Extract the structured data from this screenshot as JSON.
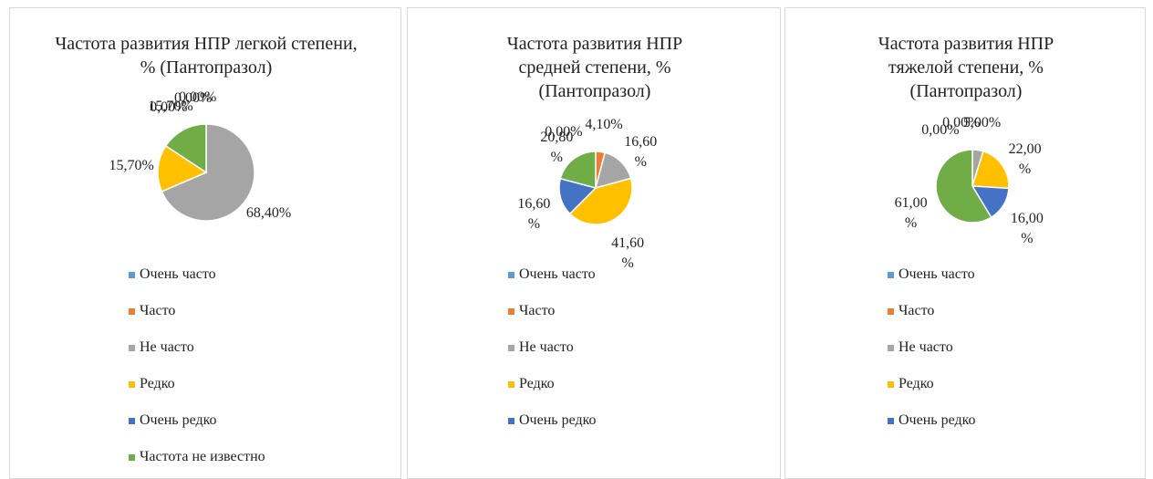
{
  "chart_data": [
    {
      "type": "pie",
      "title": "Частота развития НПР легкой степени, % (Пантопразол)",
      "categories": [
        "Очень часто",
        "Часто",
        "Не часто",
        "Редко",
        "Очень редко",
        "Частота не известно"
      ],
      "values": [
        0,
        0,
        68.4,
        15.7,
        0,
        15.7
      ],
      "value_labels": [
        "0,00%",
        "0,00%",
        "68,40%",
        "15,70%",
        "0,00%",
        "15,70%"
      ],
      "colors": [
        "#5b9bd5",
        "#ed7d31",
        "#a5a5a5",
        "#ffc000",
        "#4472c4",
        "#70ad47"
      ],
      "legend": "bottom"
    },
    {
      "type": "pie",
      "title": "Частота развития НПР средней степени, % (Пантопразол)",
      "categories": [
        "Очень часто",
        "Часто",
        "Не часто",
        "Редко",
        "Очень редко",
        null
      ],
      "values": [
        0,
        4.1,
        16.6,
        41.6,
        16.6,
        20.8
      ],
      "value_labels": [
        "0,00%",
        "4,10%",
        "16,60 %",
        "41,60 %",
        "16,60 %",
        "20,80 %"
      ],
      "colors": [
        "#5b9bd5",
        "#ed7d31",
        "#a5a5a5",
        "#ffc000",
        "#4472c4",
        "#70ad47"
      ],
      "legend": "bottom"
    },
    {
      "type": "pie",
      "title": "Частота развития НПР тяжелой степени, % (Пантопразол)",
      "categories": [
        "Очень часто",
        "Часто",
        "Не часто",
        "Редко",
        "Очень редко",
        null
      ],
      "values": [
        0,
        0,
        5,
        22,
        16,
        61
      ],
      "value_labels": [
        "0,00%",
        "0,00%",
        "5,00%",
        "22,00 %",
        "16,00 %",
        "61,00 %"
      ],
      "colors": [
        "#5b9bd5",
        "#ed7d31",
        "#a5a5a5",
        "#ffc000",
        "#4472c4",
        "#70ad47"
      ],
      "legend": "bottom"
    }
  ]
}
